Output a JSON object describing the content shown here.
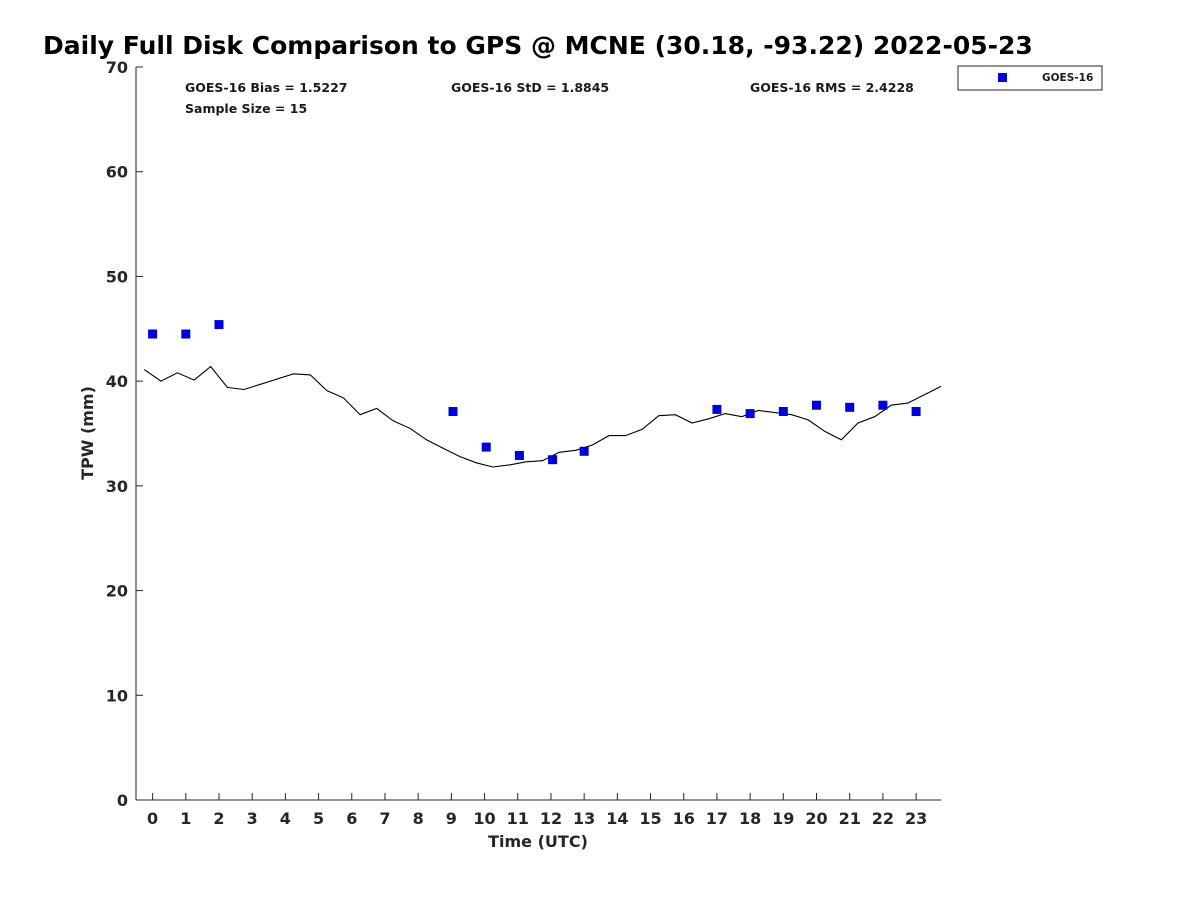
{
  "chart_data": {
    "type": "scatter",
    "title": "Daily Full Disk Comparison to GPS @ MCNE (30.18, -93.22) 2022-05-23",
    "xlabel": "Time (UTC)",
    "ylabel": "TPW (mm)",
    "xlim": [
      -0.5,
      23.75
    ],
    "ylim": [
      0,
      70
    ],
    "x_ticks": [
      0,
      1,
      2,
      3,
      4,
      5,
      6,
      7,
      8,
      9,
      10,
      11,
      12,
      13,
      14,
      15,
      16,
      17,
      18,
      19,
      20,
      21,
      22,
      23
    ],
    "y_ticks": [
      0,
      10,
      20,
      30,
      40,
      50,
      60,
      70
    ],
    "grid": false,
    "legend_position": "outside top-right",
    "stats": {
      "bias_label": "GOES-16 Bias = 1.5227",
      "std_label": "GOES-16 StD = 1.8845",
      "rms_label": "GOES-16 RMS = 2.4228",
      "sample_label": "Sample Size = 15"
    },
    "series": [
      {
        "name": "GOES-16",
        "kind": "scatter",
        "color": "#0000dd",
        "marker": "square",
        "points": [
          [
            0.0,
            44.5
          ],
          [
            1.0,
            44.5
          ],
          [
            2.0,
            45.4
          ],
          [
            9.05,
            37.1
          ],
          [
            10.05,
            33.7
          ],
          [
            11.05,
            32.9
          ],
          [
            12.05,
            32.5
          ],
          [
            13.0,
            33.3
          ],
          [
            17.0,
            37.3
          ],
          [
            18.0,
            36.9
          ],
          [
            19.0,
            37.1
          ],
          [
            20.0,
            37.7
          ],
          [
            21.0,
            37.5
          ],
          [
            22.0,
            37.7
          ],
          [
            23.0,
            37.1
          ]
        ]
      },
      {
        "kind": "line",
        "color": "#000000",
        "points": [
          [
            -0.25,
            41.1
          ],
          [
            0.25,
            40.0
          ],
          [
            0.75,
            40.8
          ],
          [
            1.25,
            40.1
          ],
          [
            1.75,
            41.4
          ],
          [
            2.25,
            39.4
          ],
          [
            2.75,
            39.2
          ],
          [
            3.25,
            39.7
          ],
          [
            3.75,
            40.2
          ],
          [
            4.25,
            40.7
          ],
          [
            4.75,
            40.6
          ],
          [
            5.25,
            39.1
          ],
          [
            5.75,
            38.4
          ],
          [
            6.25,
            36.8
          ],
          [
            6.75,
            37.4
          ],
          [
            7.25,
            36.2
          ],
          [
            7.75,
            35.5
          ],
          [
            8.25,
            34.4
          ],
          [
            8.75,
            33.6
          ],
          [
            9.25,
            32.8
          ],
          [
            9.75,
            32.2
          ],
          [
            10.25,
            31.8
          ],
          [
            10.75,
            32.0
          ],
          [
            11.25,
            32.3
          ],
          [
            11.75,
            32.4
          ],
          [
            12.25,
            33.2
          ],
          [
            12.75,
            33.4
          ],
          [
            13.25,
            33.9
          ],
          [
            13.75,
            34.8
          ],
          [
            14.25,
            34.8
          ],
          [
            14.75,
            35.4
          ],
          [
            15.25,
            36.7
          ],
          [
            15.75,
            36.8
          ],
          [
            16.25,
            36.0
          ],
          [
            16.75,
            36.4
          ],
          [
            17.25,
            36.9
          ],
          [
            17.75,
            36.6
          ],
          [
            18.25,
            37.2
          ],
          [
            18.75,
            37.0
          ],
          [
            19.25,
            36.8
          ],
          [
            19.75,
            36.3
          ],
          [
            20.25,
            35.2
          ],
          [
            20.75,
            34.4
          ],
          [
            21.25,
            36.0
          ],
          [
            21.75,
            36.6
          ],
          [
            22.25,
            37.7
          ],
          [
            22.75,
            37.9
          ],
          [
            23.25,
            38.7
          ],
          [
            23.75,
            39.5
          ]
        ]
      }
    ]
  }
}
